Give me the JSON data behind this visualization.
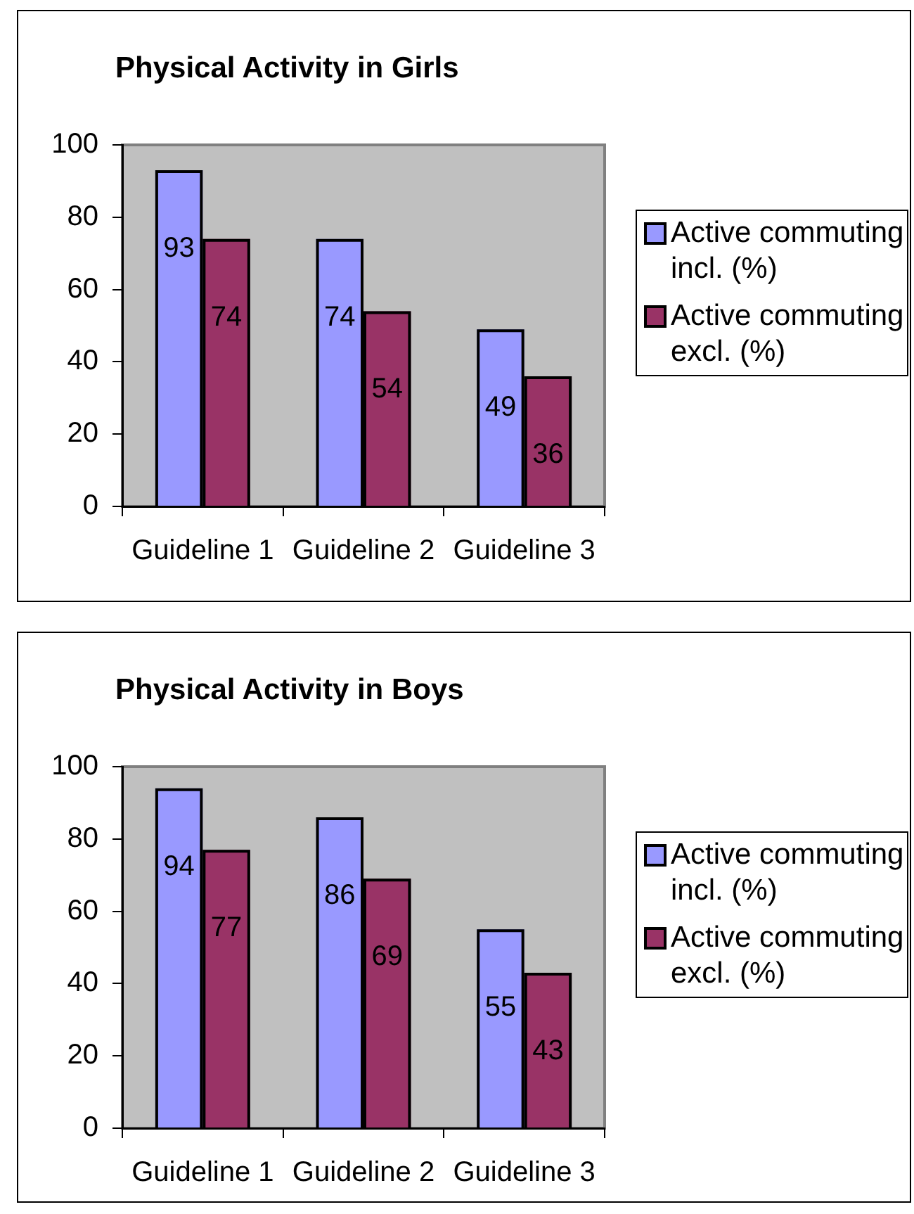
{
  "chart_data": [
    {
      "type": "bar",
      "title": "Physical Activity in Girls",
      "categories": [
        "Guideline 1",
        "Guideline 2",
        "Guideline 3"
      ],
      "series": [
        {
          "name": "Active commuting incl. (%)",
          "color": "#9999ff",
          "values": [
            93,
            74,
            49
          ]
        },
        {
          "name": "Active commuting excl. (%)",
          "color": "#993366",
          "values": [
            74,
            54,
            36
          ]
        }
      ],
      "ylim": [
        0,
        100
      ],
      "yticks": [
        0,
        20,
        40,
        60,
        80,
        100
      ],
      "data_labels": true,
      "legend": "right",
      "grid": false
    },
    {
      "type": "bar",
      "title": "Physical Activity in Boys",
      "categories": [
        "Guideline 1",
        "Guideline 2",
        "Guideline 3"
      ],
      "series": [
        {
          "name": "Active commuting incl. (%)",
          "color": "#9999ff",
          "values": [
            94,
            86,
            55
          ]
        },
        {
          "name": "Active commuting excl. (%)",
          "color": "#993366",
          "values": [
            77,
            69,
            43
          ]
        }
      ],
      "ylim": [
        0,
        100
      ],
      "yticks": [
        0,
        20,
        40,
        60,
        80,
        100
      ],
      "data_labels": true,
      "legend": "right",
      "grid": false
    }
  ]
}
